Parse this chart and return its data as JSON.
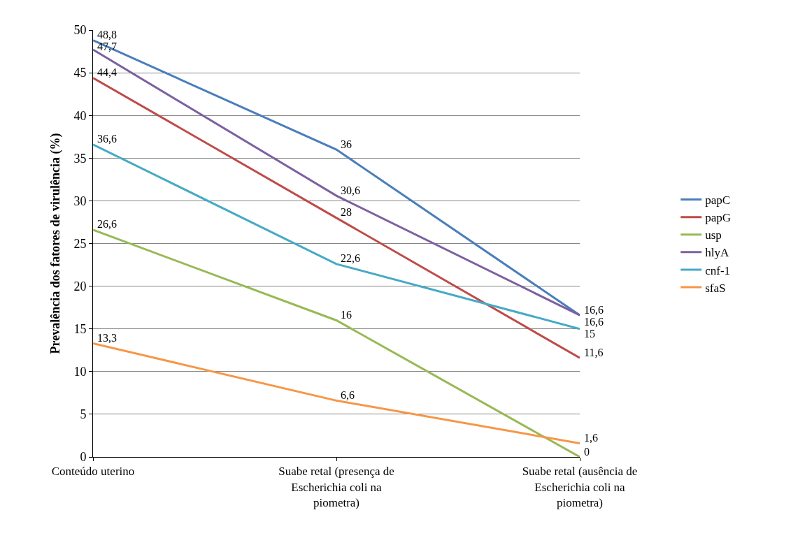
{
  "chart_data": {
    "type": "line",
    "ylabel": "Prevalência dos fatores de virulência (%)",
    "categories": [
      "Conteúdo uterino",
      "Suabe retal (presença de Escherichia coli na piometra)",
      "Suabe retal (ausência de Escherichia coli na piometra)"
    ],
    "series": [
      {
        "name": "papC",
        "color": "#4a7ebb",
        "values": [
          48.8,
          36,
          16.6
        ],
        "value_labels": [
          "48,8",
          "36",
          "16,6"
        ]
      },
      {
        "name": "papG",
        "color": "#be4b48",
        "values": [
          44.4,
          28,
          11.6
        ],
        "value_labels": [
          "44,4",
          "28",
          "11,6"
        ]
      },
      {
        "name": "usp",
        "color": "#98b954",
        "values": [
          26.6,
          16,
          0
        ],
        "value_labels": [
          "26,6",
          "16",
          "0"
        ]
      },
      {
        "name": "hlyA",
        "color": "#7d60a0",
        "values": [
          47.7,
          30.6,
          16.6
        ],
        "value_labels": [
          "47,7",
          "30,6",
          "16,6"
        ]
      },
      {
        "name": "cnf-1",
        "color": "#46aac5",
        "values": [
          36.6,
          22.6,
          15
        ],
        "value_labels": [
          "36,6",
          "22,6",
          "15"
        ]
      },
      {
        "name": "sfaS",
        "color": "#f79646",
        "values": [
          13.3,
          6.6,
          1.6
        ],
        "value_labels": [
          "13,3",
          "6,6",
          "1,6"
        ]
      }
    ],
    "ylim": [
      0,
      50
    ],
    "yticks": [
      0,
      5,
      10,
      15,
      20,
      25,
      30,
      35,
      40,
      45,
      50
    ],
    "grid": "y",
    "legend": "right",
    "marker": "none",
    "line_style": "solid"
  }
}
